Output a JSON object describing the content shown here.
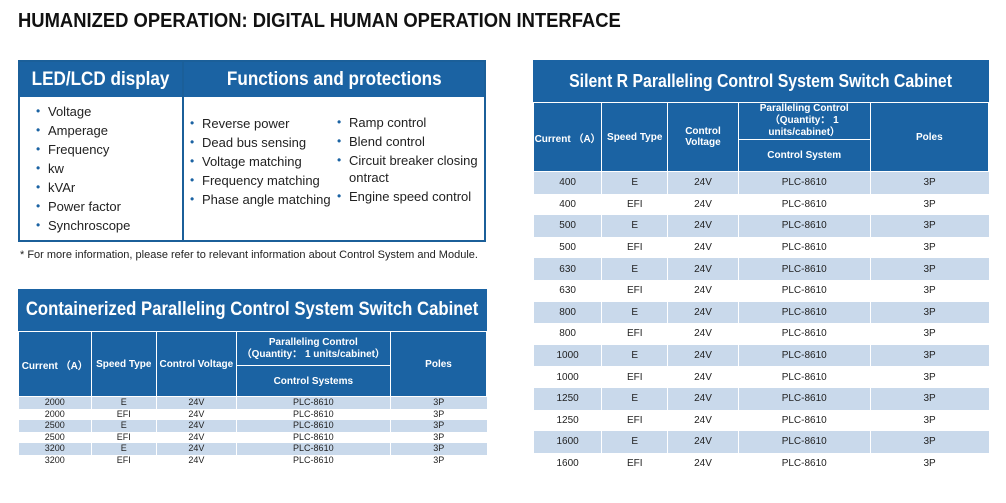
{
  "page_title": "HUMANIZED OPERATION: DIGITAL HUMAN OPERATION INTERFACE",
  "features": {
    "display_heading": "LED/LCD display",
    "functions_heading": "Functions and protections",
    "display_items": [
      "Voltage",
      "Amperage",
      "Frequency",
      "kw",
      "kVAr",
      "Power factor",
      "Synchroscope"
    ],
    "function_items_a": [
      "Reverse power",
      "Dead bus sensing",
      "Voltage matching",
      "Frequency matching",
      "Phase angle matching"
    ],
    "function_items_b": [
      "Ramp control",
      "Blend control",
      "Circuit breaker closing ontract",
      "Engine speed control"
    ]
  },
  "note": "* For more information, please refer to relevant information about Control System and Module.",
  "containerized_cabinet": {
    "title": "Containerized Paralleling Control System Switch Cabinet",
    "headers": {
      "current": "Current （A）",
      "speed_type": "Speed Type",
      "control_voltage": "Control Voltage",
      "paralleling": "Paralleling Control\n（Quantity： 1 units/cabinet）",
      "control_system": "Control Systems",
      "poles": "Poles"
    },
    "rows": [
      [
        "2000",
        "E",
        "24V",
        "PLC-8610",
        "3P"
      ],
      [
        "2000",
        "EFI",
        "24V",
        "PLC-8610",
        "3P"
      ],
      [
        "2500",
        "E",
        "24V",
        "PLC-8610",
        "3P"
      ],
      [
        "2500",
        "EFI",
        "24V",
        "PLC-8610",
        "3P"
      ],
      [
        "3200",
        "E",
        "24V",
        "PLC-8610",
        "3P"
      ],
      [
        "3200",
        "EFI",
        "24V",
        "PLC-8610",
        "3P"
      ]
    ]
  },
  "silent_cabinet": {
    "title": "Silent R Paralleling Control System Switch Cabinet",
    "headers": {
      "current": "Current （A）",
      "speed_type": "Speed Type",
      "control_voltage": "Control Voltage",
      "paralleling": "Paralleling Control\n（Quantity： 1 units/cabinet）",
      "control_system": "Control System",
      "poles": "Poles"
    },
    "rows": [
      [
        "400",
        "E",
        "24V",
        "PLC-8610",
        "3P"
      ],
      [
        "400",
        "EFI",
        "24V",
        "PLC-8610",
        "3P"
      ],
      [
        "500",
        "E",
        "24V",
        "PLC-8610",
        "3P"
      ],
      [
        "500",
        "EFI",
        "24V",
        "PLC-8610",
        "3P"
      ],
      [
        "630",
        "E",
        "24V",
        "PLC-8610",
        "3P"
      ],
      [
        "630",
        "EFI",
        "24V",
        "PLC-8610",
        "3P"
      ],
      [
        "800",
        "E",
        "24V",
        "PLC-8610",
        "3P"
      ],
      [
        "800",
        "EFI",
        "24V",
        "PLC-8610",
        "3P"
      ],
      [
        "1000",
        "E",
        "24V",
        "PLC-8610",
        "3P"
      ],
      [
        "1000",
        "EFI",
        "24V",
        "PLC-8610",
        "3P"
      ],
      [
        "1250",
        "E",
        "24V",
        "PLC-8610",
        "3P"
      ],
      [
        "1250",
        "EFI",
        "24V",
        "PLC-8610",
        "3P"
      ],
      [
        "1600",
        "E",
        "24V",
        "PLC-8610",
        "3P"
      ],
      [
        "1600",
        "EFI",
        "24V",
        "PLC-8610",
        "3P"
      ]
    ]
  },
  "colors": {
    "header_blue": "#1b63a3",
    "stripe_blue": "#c9d9eb",
    "bullet_blue": "#1b63a3"
  }
}
